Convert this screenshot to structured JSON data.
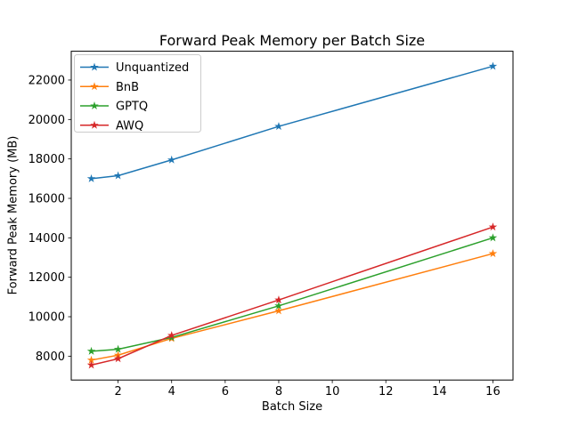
{
  "figure": {
    "background": "#ffffff",
    "axes_edge_color": "#000000",
    "text_color": "#000000",
    "legend_border_color": "#cccccc",
    "legend_background": "#ffffff"
  },
  "chart_data": {
    "type": "line",
    "title": "Forward Peak Memory per Batch Size",
    "xlabel": "Batch Size",
    "ylabel": "Forward Peak Memory (MB)",
    "x": [
      1,
      2,
      4,
      8,
      16
    ],
    "series": [
      {
        "name": "Unquantized",
        "color": "#1f77b4",
        "values": [
          17000,
          17150,
          17950,
          19650,
          22700
        ]
      },
      {
        "name": "BnB",
        "color": "#ff7f0e",
        "values": [
          7800,
          8050,
          8900,
          10300,
          13200
        ]
      },
      {
        "name": "GPTQ",
        "color": "#2ca02c",
        "values": [
          8250,
          8350,
          8950,
          10550,
          14000
        ]
      },
      {
        "name": "AWQ",
        "color": "#d62728",
        "values": [
          7550,
          7870,
          9050,
          10850,
          14550
        ]
      }
    ],
    "marker": "star",
    "xticks": [
      2,
      4,
      6,
      8,
      10,
      12,
      14,
      16
    ],
    "yticks": [
      8000,
      10000,
      12000,
      14000,
      16000,
      18000,
      20000,
      22000
    ],
    "xlim": [
      0.25,
      16.75
    ],
    "ylim": [
      6790,
      23460
    ],
    "legend_position": "upper left",
    "grid": false
  }
}
